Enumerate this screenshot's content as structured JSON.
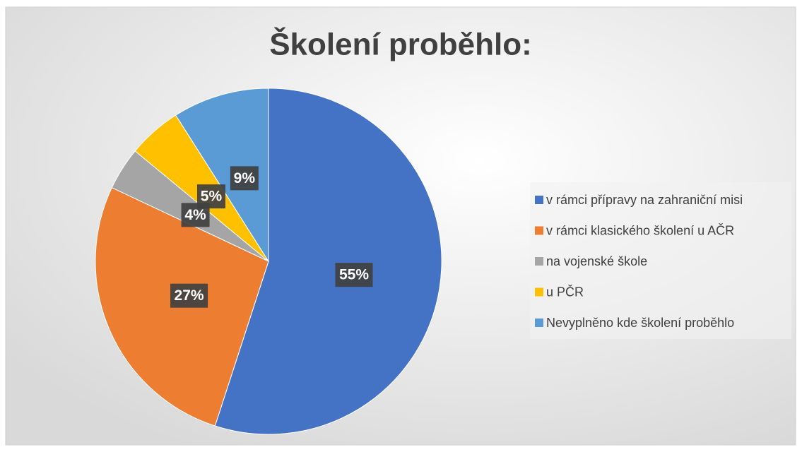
{
  "chart_data": {
    "type": "pie",
    "title": "Školení proběhlo:",
    "categories": [
      "v rámci přípravy na zahraniční misi",
      "v rámci klasického školení u AČR",
      "na vojenské škole",
      "u PČR",
      "Nevyplněno kde školení proběhlo"
    ],
    "values": [
      55,
      27,
      4,
      5,
      9
    ],
    "value_labels": [
      "55%",
      "27%",
      "4%",
      "5%",
      "9%"
    ],
    "colors": [
      "#4472c4",
      "#ed7d31",
      "#a5a5a5",
      "#ffc000",
      "#5b9bd5"
    ],
    "legend": "right"
  }
}
